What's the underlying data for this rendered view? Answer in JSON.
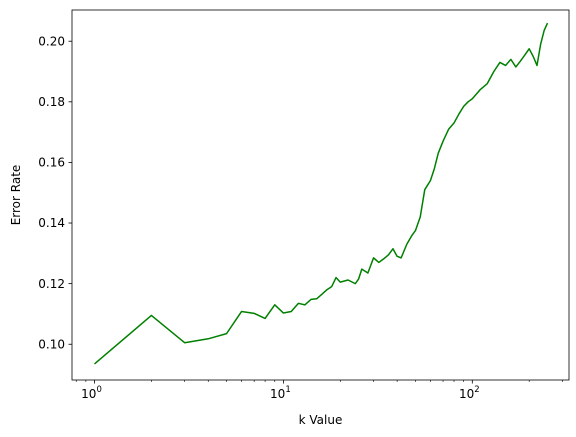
{
  "chart_data": {
    "type": "line",
    "xlabel": "k Value",
    "ylabel": "Error Rate",
    "xscale": "log",
    "xlim": [
      0.76,
      325
    ],
    "ylim": [
      0.0882,
      0.2103
    ],
    "x_ticks": [
      {
        "value": 1,
        "label_base": "10",
        "label_exp": "0"
      },
      {
        "value": 10,
        "label_base": "10",
        "label_exp": "1"
      },
      {
        "value": 100,
        "label_base": "10",
        "label_exp": "2"
      }
    ],
    "y_ticks": [
      {
        "value": 0.1,
        "label": "0.10"
      },
      {
        "value": 0.12,
        "label": "0.12"
      },
      {
        "value": 0.14,
        "label": "0.14"
      },
      {
        "value": 0.16,
        "label": "0.16"
      },
      {
        "value": 0.18,
        "label": "0.18"
      },
      {
        "value": 0.2,
        "label": "0.20"
      }
    ],
    "grid": false,
    "series": [
      {
        "color": "#008000",
        "x": [
          1,
          2,
          3,
          4,
          5,
          6,
          7,
          8,
          9,
          10,
          11,
          12,
          13,
          14,
          15,
          16,
          17,
          18,
          19,
          20,
          22,
          24,
          25,
          26,
          28,
          30,
          32,
          34,
          36,
          38,
          40,
          42,
          45,
          48,
          50,
          53,
          56,
          60,
          63,
          66,
          70,
          75,
          80,
          85,
          90,
          95,
          100,
          110,
          120,
          130,
          140,
          150,
          160,
          170,
          180,
          190,
          200,
          210,
          220,
          230,
          240,
          250
        ],
        "y": [
          0.0935,
          0.1095,
          0.1005,
          0.1018,
          0.1035,
          0.1108,
          0.1102,
          0.1085,
          0.113,
          0.1103,
          0.1108,
          0.1135,
          0.113,
          0.1148,
          0.115,
          0.1165,
          0.118,
          0.119,
          0.122,
          0.1205,
          0.1212,
          0.12,
          0.1215,
          0.1248,
          0.1235,
          0.1285,
          0.127,
          0.1282,
          0.1295,
          0.1315,
          0.129,
          0.1285,
          0.133,
          0.136,
          0.1375,
          0.142,
          0.151,
          0.154,
          0.158,
          0.163,
          0.167,
          0.171,
          0.173,
          0.176,
          0.1785,
          0.18,
          0.181,
          0.184,
          0.186,
          0.19,
          0.193,
          0.192,
          0.194,
          0.1915,
          0.1935,
          0.1955,
          0.1975,
          0.195,
          0.192,
          0.199,
          0.2035,
          0.206
        ]
      }
    ]
  }
}
